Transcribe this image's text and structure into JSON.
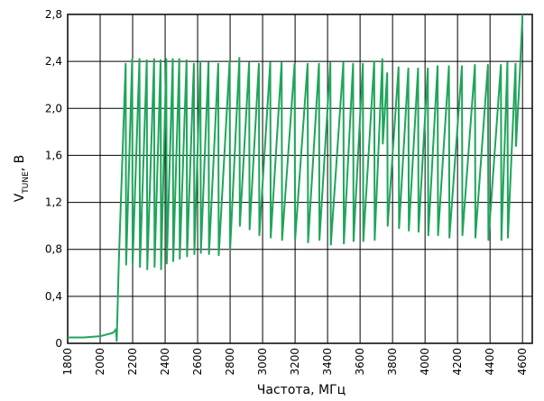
{
  "chart_data": {
    "type": "line",
    "xlabel": "Частота, МГц",
    "ylabel_main": "V",
    "ylabel_sub": "TUNE",
    "ylabel_suffix": ", В",
    "xlim": [
      1800,
      4660
    ],
    "ylim": [
      0,
      2.8
    ],
    "xticks": [
      1800,
      2000,
      2200,
      2400,
      2600,
      2800,
      3000,
      3200,
      3400,
      3600,
      3800,
      4000,
      4200,
      4400,
      4600
    ],
    "yticks": [
      0,
      {
        "value": 0.4,
        "label": "0,4"
      },
      {
        "value": 0.8,
        "label": "0,8"
      },
      {
        "value": 1.2,
        "label": "1,2"
      },
      {
        "value": 1.6,
        "label": "1,6"
      },
      {
        "value": 2.0,
        "label": "2,0"
      },
      {
        "value": 2.4,
        "label": "2,4"
      },
      {
        "value": 2.8,
        "label": "2,8"
      }
    ],
    "grid": true,
    "series": [
      {
        "color": "#1fa55a",
        "x": [
          1800,
          1900,
          2000,
          2080,
          2098,
          2102,
          2115,
          2157,
          2160,
          2197,
          2200,
          2242,
          2245,
          2287,
          2290,
          2332,
          2335,
          2372,
          2375,
          2407,
          2410,
          2447,
          2450,
          2487,
          2490,
          2532,
          2535,
          2577,
          2580,
          2617,
          2620,
          2667,
          2670,
          2727,
          2730,
          2797,
          2800,
          2857,
          2860,
          2917,
          2920,
          2977,
          2980,
          3047,
          3050,
          3117,
          3120,
          3197,
          3200,
          3277,
          3280,
          3347,
          3350,
          3417,
          3420,
          3497,
          3500,
          3557,
          3560,
          3617,
          3620,
          3687,
          3690,
          3737,
          3740,
          3767,
          3770,
          3837,
          3840,
          3897,
          3900,
          3957,
          3960,
          4017,
          4020,
          4077,
          4080,
          4147,
          4150,
          4227,
          4230,
          4307,
          4310,
          4387,
          4390,
          4467,
          4470,
          4507,
          4510,
          4557,
          4560,
          4580,
          4600
        ],
        "values": [
          0.05,
          0.05,
          0.06,
          0.09,
          0.12,
          0.02,
          0.7,
          2.38,
          0.67,
          2.42,
          0.68,
          2.42,
          0.65,
          2.41,
          0.63,
          2.42,
          0.65,
          2.41,
          0.63,
          2.42,
          0.68,
          2.42,
          0.7,
          2.42,
          0.72,
          2.41,
          0.74,
          2.38,
          0.76,
          2.4,
          0.77,
          2.39,
          0.76,
          2.38,
          0.75,
          2.4,
          0.8,
          2.43,
          1.0,
          2.39,
          0.97,
          2.38,
          0.92,
          2.39,
          0.9,
          2.39,
          0.88,
          2.38,
          0.88,
          2.38,
          0.86,
          2.38,
          0.88,
          2.39,
          0.84,
          2.39,
          0.85,
          2.38,
          0.87,
          2.38,
          0.87,
          2.4,
          0.88,
          2.42,
          1.7,
          2.3,
          1.0,
          2.35,
          0.98,
          2.34,
          0.96,
          2.34,
          0.95,
          2.34,
          0.92,
          2.36,
          0.92,
          2.36,
          0.9,
          2.36,
          0.92,
          2.37,
          0.9,
          2.37,
          0.88,
          2.37,
          0.88,
          2.39,
          0.9,
          2.38,
          1.68,
          2.2,
          2.8
        ]
      }
    ]
  }
}
